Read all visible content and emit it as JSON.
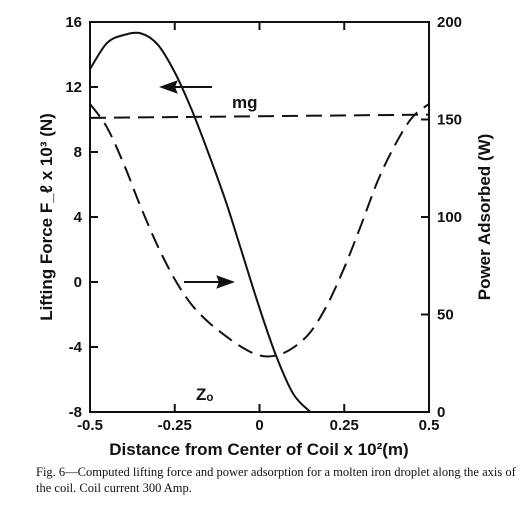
{
  "chart_data": {
    "type": "line",
    "xlabel": "Distance from Center of Coil x 10²(m)",
    "ylabel_left": "Lifting Force F_ℓ x 10³ (N)",
    "ylabel_right": "Power Adsorbed (W)",
    "xlim": [
      -0.5,
      0.5
    ],
    "ylim_left": [
      -8,
      16
    ],
    "ylim_right": [
      0,
      200
    ],
    "x_ticks": [
      "-0.5",
      "-0.25",
      "0",
      "0.25",
      "0.5"
    ],
    "x_tick_values": [
      -0.5,
      -0.25,
      0,
      0.25,
      0.5
    ],
    "y_left_ticks": [
      "-8",
      "-4",
      "0",
      "4",
      "8",
      "12",
      "16"
    ],
    "y_left_tick_values": [
      -8,
      -4,
      0,
      4,
      8,
      12,
      16
    ],
    "y_right_ticks": [
      "0",
      "50",
      "100",
      "150",
      "200"
    ],
    "y_right_tick_values": [
      0,
      50,
      100,
      150,
      200
    ],
    "series": [
      {
        "axis": "left",
        "style": "solid",
        "x": [
          -0.5,
          -0.45,
          -0.4,
          -0.35,
          -0.3,
          -0.25,
          -0.2,
          -0.15,
          -0.1,
          -0.05,
          0,
          0.05,
          0.1,
          0.15
        ],
        "y": [
          13.1,
          14.7,
          15.2,
          15.3,
          14.6,
          12.9,
          10.6,
          7.9,
          5.0,
          1.7,
          -1.6,
          -4.6,
          -6.9,
          -8.0
        ]
      },
      {
        "axis": "right",
        "style": "dashed",
        "x": [
          -0.5,
          -0.45,
          -0.4,
          -0.35,
          -0.3,
          -0.25,
          -0.2,
          -0.15,
          -0.1,
          -0.05,
          0,
          0.05,
          0.1,
          0.15,
          0.2,
          0.25,
          0.3,
          0.35,
          0.4,
          0.45,
          0.5
        ],
        "y": [
          158,
          146,
          127,
          105,
          85,
          68,
          55,
          46,
          39,
          33,
          29,
          29,
          33,
          41,
          55,
          74,
          96,
          119,
          137,
          151,
          158
        ]
      },
      {
        "axis": "left",
        "style": "dashed",
        "x": [
          -0.5,
          0.5
        ],
        "y": [
          10.1,
          10.3
        ]
      }
    ],
    "annotations": {
      "mg": "mg",
      "z0": "Zₒ"
    }
  },
  "caption": "Fig. 6—Computed lifting force and power adsorption for a molten iron droplet along the axis of the coil. Coil current 300 Amp."
}
